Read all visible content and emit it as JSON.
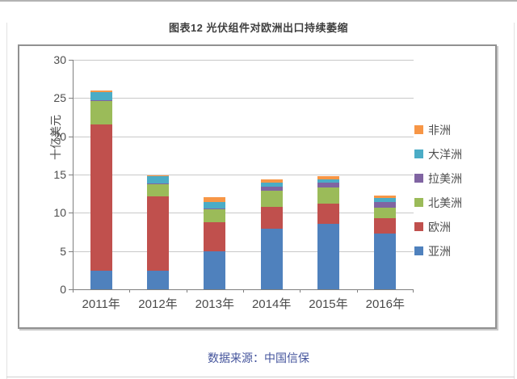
{
  "page": {
    "title": "图表12  光伏组件对欧洲出口持续萎缩",
    "footer": "数据来源：中国信保"
  },
  "chart_data": {
    "type": "bar",
    "stacked": true,
    "title": "图表12 光伏组件对欧洲出口持续萎缩",
    "xlabel": "",
    "ylabel": "十亿美元",
    "ylim": [
      0,
      30
    ],
    "ytick_step": 5,
    "grid": true,
    "legend_position": "right",
    "categories": [
      "2011年",
      "2012年",
      "2013年",
      "2014年",
      "2015年",
      "2016年"
    ],
    "series": [
      {
        "name": "亚洲",
        "color": "#4F81BD",
        "values": [
          2.4,
          2.4,
          5.0,
          7.9,
          8.6,
          7.3
        ]
      },
      {
        "name": "欧洲",
        "color": "#C0504D",
        "values": [
          19.2,
          9.7,
          3.8,
          2.9,
          2.6,
          2.0
        ]
      },
      {
        "name": "北美洲",
        "color": "#9BBB59",
        "values": [
          3.0,
          1.6,
          1.7,
          2.1,
          2.1,
          1.4
        ]
      },
      {
        "name": "拉美洲",
        "color": "#8064A2",
        "values": [
          0.1,
          0.1,
          0.1,
          0.5,
          0.6,
          0.7
        ]
      },
      {
        "name": "大洋洲",
        "color": "#4BACC6",
        "values": [
          1.1,
          1.0,
          0.8,
          0.5,
          0.5,
          0.5
        ]
      },
      {
        "name": "非洲",
        "color": "#F79646",
        "values": [
          0.2,
          0.1,
          0.6,
          0.5,
          0.4,
          0.4
        ]
      }
    ],
    "legend_top_to_bottom": [
      "非洲",
      "大洋洲",
      "拉美洲",
      "北美洲",
      "欧洲",
      "亚洲"
    ],
    "totals_by_year": [
      26.0,
      14.9,
      12.0,
      14.4,
      14.8,
      12.3
    ]
  },
  "colors": {
    "axis": "#7f7f7f",
    "gridline": "#c9c9c9",
    "frame_border": "#919191",
    "footer_text": "#44549c"
  }
}
